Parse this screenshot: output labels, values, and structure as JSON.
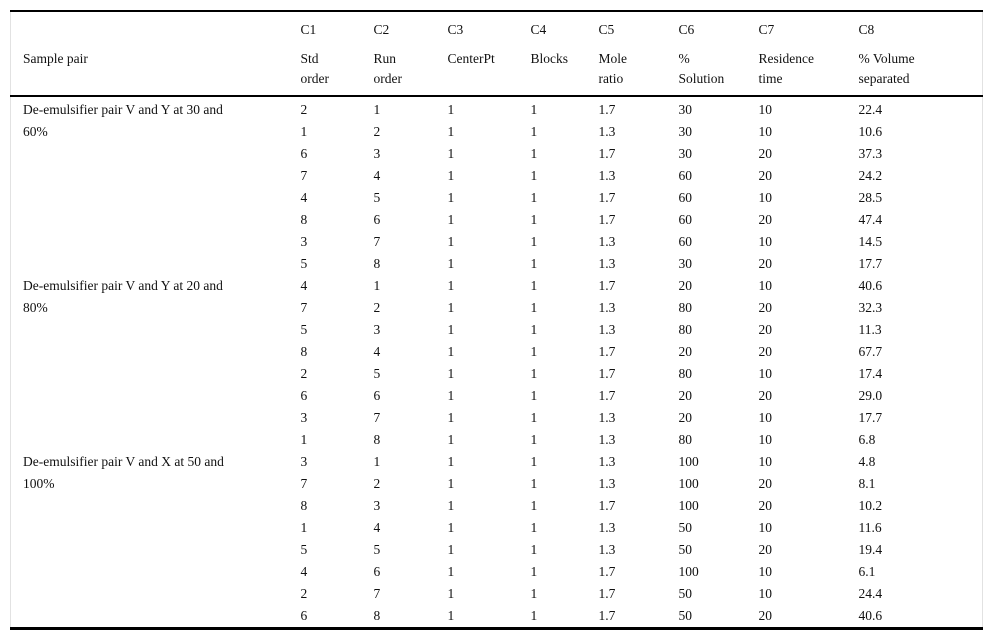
{
  "page": {
    "background": "#ffffff",
    "text_color": "#111111",
    "rule_color": "#000000"
  },
  "table": {
    "columns": [
      {
        "code": "",
        "label": "Sample pair"
      },
      {
        "code": "C1",
        "label": "Std\norder"
      },
      {
        "code": "C2",
        "label": "Run\norder"
      },
      {
        "code": "C3",
        "label": "CenterPt"
      },
      {
        "code": "C4",
        "label": "Blocks"
      },
      {
        "code": "C5",
        "label": "Mole\nratio"
      },
      {
        "code": "C6",
        "label": "%\nSolution"
      },
      {
        "code": "C7",
        "label": "Residence\ntime"
      },
      {
        "code": "C8",
        "label": "% Volume\nseparated"
      }
    ],
    "groups": [
      {
        "sample_pair": "De-emulsifier pair V and Y at 30 and\n60%",
        "rows": [
          [
            "2",
            "1",
            "1",
            "1",
            "1.7",
            "30",
            "10",
            "22.4"
          ],
          [
            "1",
            "2",
            "1",
            "1",
            "1.3",
            "30",
            "10",
            "10.6"
          ],
          [
            "6",
            "3",
            "1",
            "1",
            "1.7",
            "30",
            "20",
            "37.3"
          ],
          [
            "7",
            "4",
            "1",
            "1",
            "1.3",
            "60",
            "20",
            "24.2"
          ],
          [
            "4",
            "5",
            "1",
            "1",
            "1.7",
            "60",
            "10",
            "28.5"
          ],
          [
            "8",
            "6",
            "1",
            "1",
            "1.7",
            "60",
            "20",
            "47.4"
          ],
          [
            "3",
            "7",
            "1",
            "1",
            "1.3",
            "60",
            "10",
            "14.5"
          ],
          [
            "5",
            "8",
            "1",
            "1",
            "1.3",
            "30",
            "20",
            "17.7"
          ]
        ]
      },
      {
        "sample_pair": "De-emulsifier pair V and Y at 20 and\n80%",
        "rows": [
          [
            "4",
            "1",
            "1",
            "1",
            "1.7",
            "20",
            "10",
            "40.6"
          ],
          [
            "7",
            "2",
            "1",
            "1",
            "1.3",
            "80",
            "20",
            "32.3"
          ],
          [
            "5",
            "3",
            "1",
            "1",
            "1.3",
            "80",
            "20",
            "11.3"
          ],
          [
            "8",
            "4",
            "1",
            "1",
            "1.7",
            "20",
            "20",
            "67.7"
          ],
          [
            "2",
            "5",
            "1",
            "1",
            "1.7",
            "80",
            "10",
            "17.4"
          ],
          [
            "6",
            "6",
            "1",
            "1",
            "1.7",
            "20",
            "20",
            "29.0"
          ],
          [
            "3",
            "7",
            "1",
            "1",
            "1.3",
            "20",
            "10",
            "17.7"
          ],
          [
            "1",
            "8",
            "1",
            "1",
            "1.3",
            "80",
            "10",
            "6.8"
          ]
        ]
      },
      {
        "sample_pair": "De-emulsifier pair V and X at 50 and\n100%",
        "rows": [
          [
            "3",
            "1",
            "1",
            "1",
            "1.3",
            "100",
            "10",
            "4.8"
          ],
          [
            "7",
            "2",
            "1",
            "1",
            "1.3",
            "100",
            "20",
            "8.1"
          ],
          [
            "8",
            "3",
            "1",
            "1",
            "1.7",
            "100",
            "20",
            "10.2"
          ],
          [
            "1",
            "4",
            "1",
            "1",
            "1.3",
            "50",
            "10",
            "11.6"
          ],
          [
            "5",
            "5",
            "1",
            "1",
            "1.3",
            "50",
            "20",
            "19.4"
          ],
          [
            "4",
            "6",
            "1",
            "1",
            "1.7",
            "100",
            "10",
            "6.1"
          ],
          [
            "2",
            "7",
            "1",
            "1",
            "1.7",
            "50",
            "10",
            "24.4"
          ],
          [
            "6",
            "8",
            "1",
            "1",
            "1.7",
            "50",
            "20",
            "40.6"
          ]
        ]
      }
    ]
  }
}
